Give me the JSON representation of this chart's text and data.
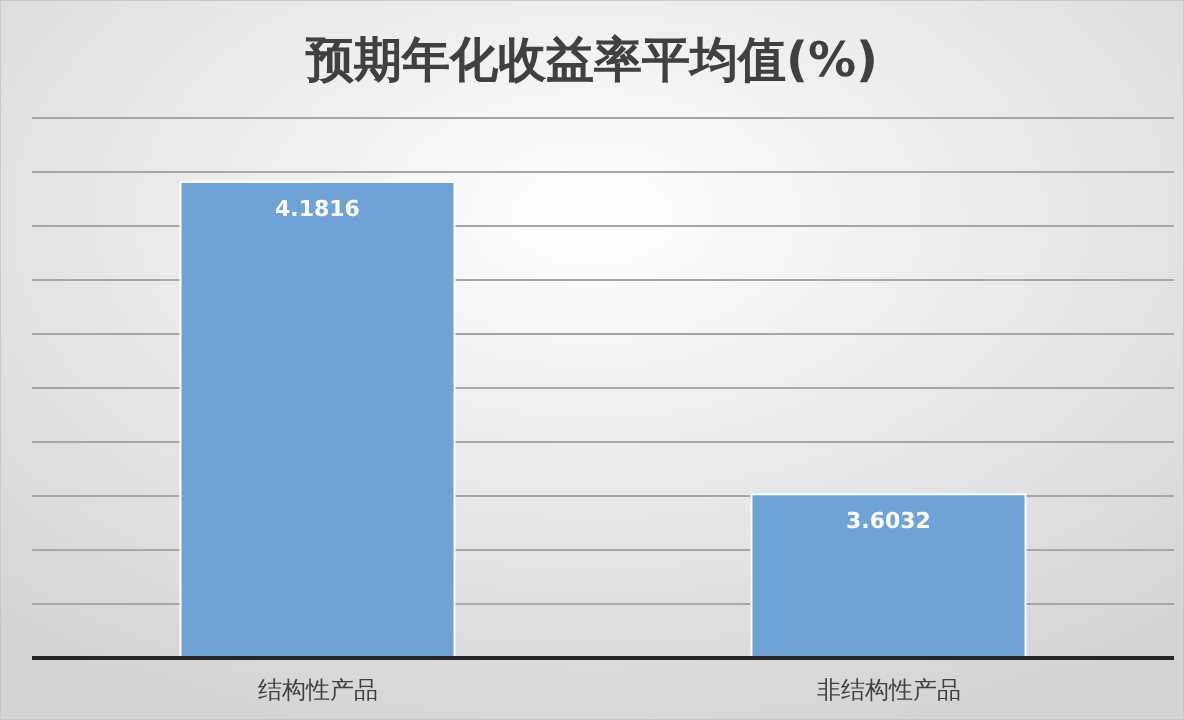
{
  "chart_data": {
    "type": "bar",
    "title": "预期年化收益率平均值(%)",
    "categories": [
      "结构性产品",
      "非结构性产品"
    ],
    "values": [
      4.1816,
      3.6032
    ],
    "color": "#6fa3d8",
    "ylim": [
      3.3,
      4.3
    ],
    "yticks": [
      {
        "value": 3.3,
        "label": null
      },
      {
        "value": 3.4,
        "label": null
      },
      {
        "value": 3.5,
        "label": null
      },
      {
        "value": 3.6,
        "label": null
      },
      {
        "value": 3.7,
        "label": null
      },
      {
        "value": 3.8,
        "label": null
      },
      {
        "value": 3.9,
        "label": null
      },
      {
        "value": 4.0,
        "label": null
      },
      {
        "value": 4.1,
        "label": null
      },
      {
        "value": 4.2,
        "label": null
      },
      {
        "value": 4.3,
        "label": null
      }
    ],
    "grid": "y",
    "data_labels": true,
    "tick_labels": "x"
  }
}
